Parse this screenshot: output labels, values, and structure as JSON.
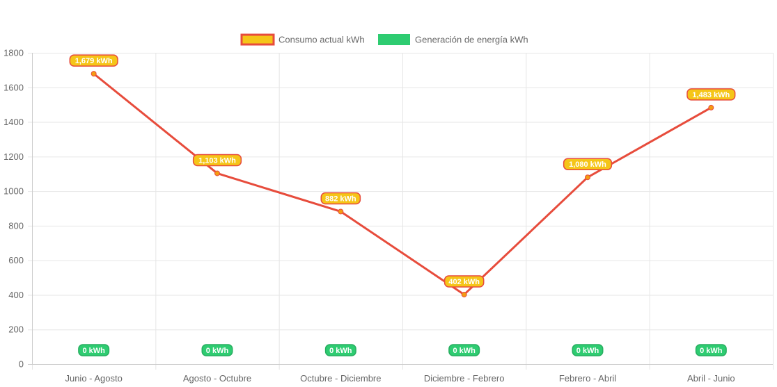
{
  "chart_data": {
    "type": "line",
    "categories": [
      "Junio - Agosto",
      "Agosto - Octubre",
      "Octubre - Diciembre",
      "Diciembre - Febrero",
      "Febrero - Abril",
      "Abril - Junio"
    ],
    "series": [
      {
        "name": "Consumo actual kWh",
        "values": [
          1679,
          1103,
          882,
          402,
          1080,
          1483
        ],
        "labels": [
          "1,679 kWh",
          "1,103 kWh",
          "882 kWh",
          "402 kWh",
          "1,080 kWh",
          "1,483 kWh"
        ],
        "line_color": "#e74c3c",
        "fill_color": "#f5c518",
        "point_color": "#f39c12"
      },
      {
        "name": "Generación de energía kWh",
        "values": [
          0,
          0,
          0,
          0,
          0,
          0
        ],
        "labels": [
          "0 kWh",
          "0 kWh",
          "0 kWh",
          "0 kWh",
          "0 kWh",
          "0 kWh"
        ],
        "line_color": "#2ecc71",
        "fill_color": "#2ecc71"
      }
    ],
    "y_ticks": [
      "0",
      "200",
      "400",
      "600",
      "800",
      "1000",
      "1200",
      "1400",
      "1600",
      "1800"
    ],
    "ylim": [
      0,
      1800
    ],
    "grid": true,
    "legend_position": "top"
  }
}
